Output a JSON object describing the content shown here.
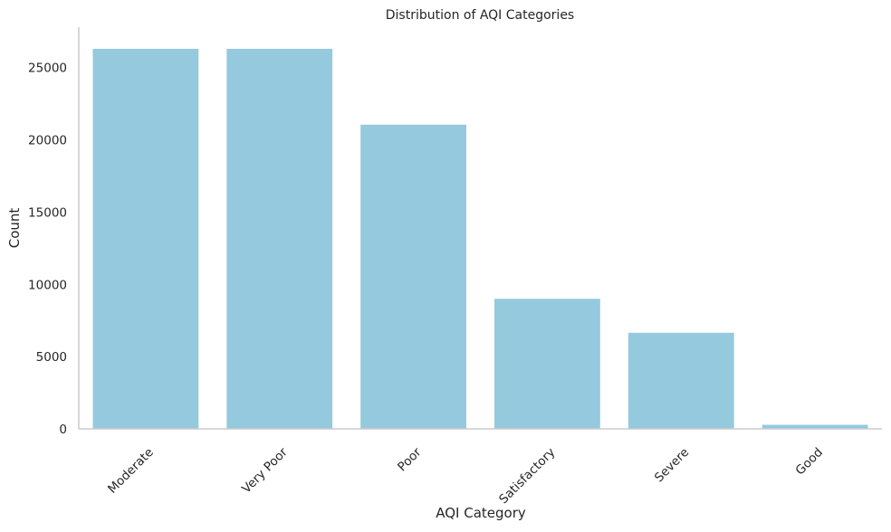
{
  "chart_data": {
    "type": "bar",
    "title": "Distribution of AQI Categories",
    "xlabel": "AQI Category",
    "ylabel": "Count",
    "categories": [
      "Moderate",
      "Very Poor",
      "Poor",
      "Satisfactory",
      "Severe",
      "Good"
    ],
    "values": [
      26300,
      26300,
      21050,
      9000,
      6650,
      280
    ],
    "ylim": [
      0,
      27800
    ],
    "yticks": [
      0,
      5000,
      10000,
      15000,
      20000,
      25000
    ],
    "grid": false,
    "legend": "none",
    "colors": {
      "bar": "#95c9de",
      "axis": "#cccccc",
      "text": "#262626"
    }
  }
}
